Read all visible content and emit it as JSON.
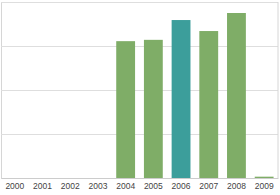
{
  "chart_data": {
    "type": "bar",
    "categories": [
      "2000",
      "2001",
      "2002",
      "2003",
      "2004",
      "2005",
      "2006",
      "2007",
      "2008",
      "2009"
    ],
    "values": [
      null,
      null,
      null,
      null,
      3.11,
      3.14,
      3.59,
      3.34,
      3.75,
      0.03
    ],
    "colors": [
      "#7fad67",
      "#7fad67",
      "#7fad67",
      "#7fad67",
      "#7fad67",
      "#7fad67",
      "#3c9e9b",
      "#7fad67",
      "#7fad67",
      "#7fad67"
    ],
    "ylim": [
      0,
      4
    ],
    "yticks": [
      0,
      1,
      2,
      3,
      4
    ],
    "grid": true,
    "tick_labels": "x"
  }
}
